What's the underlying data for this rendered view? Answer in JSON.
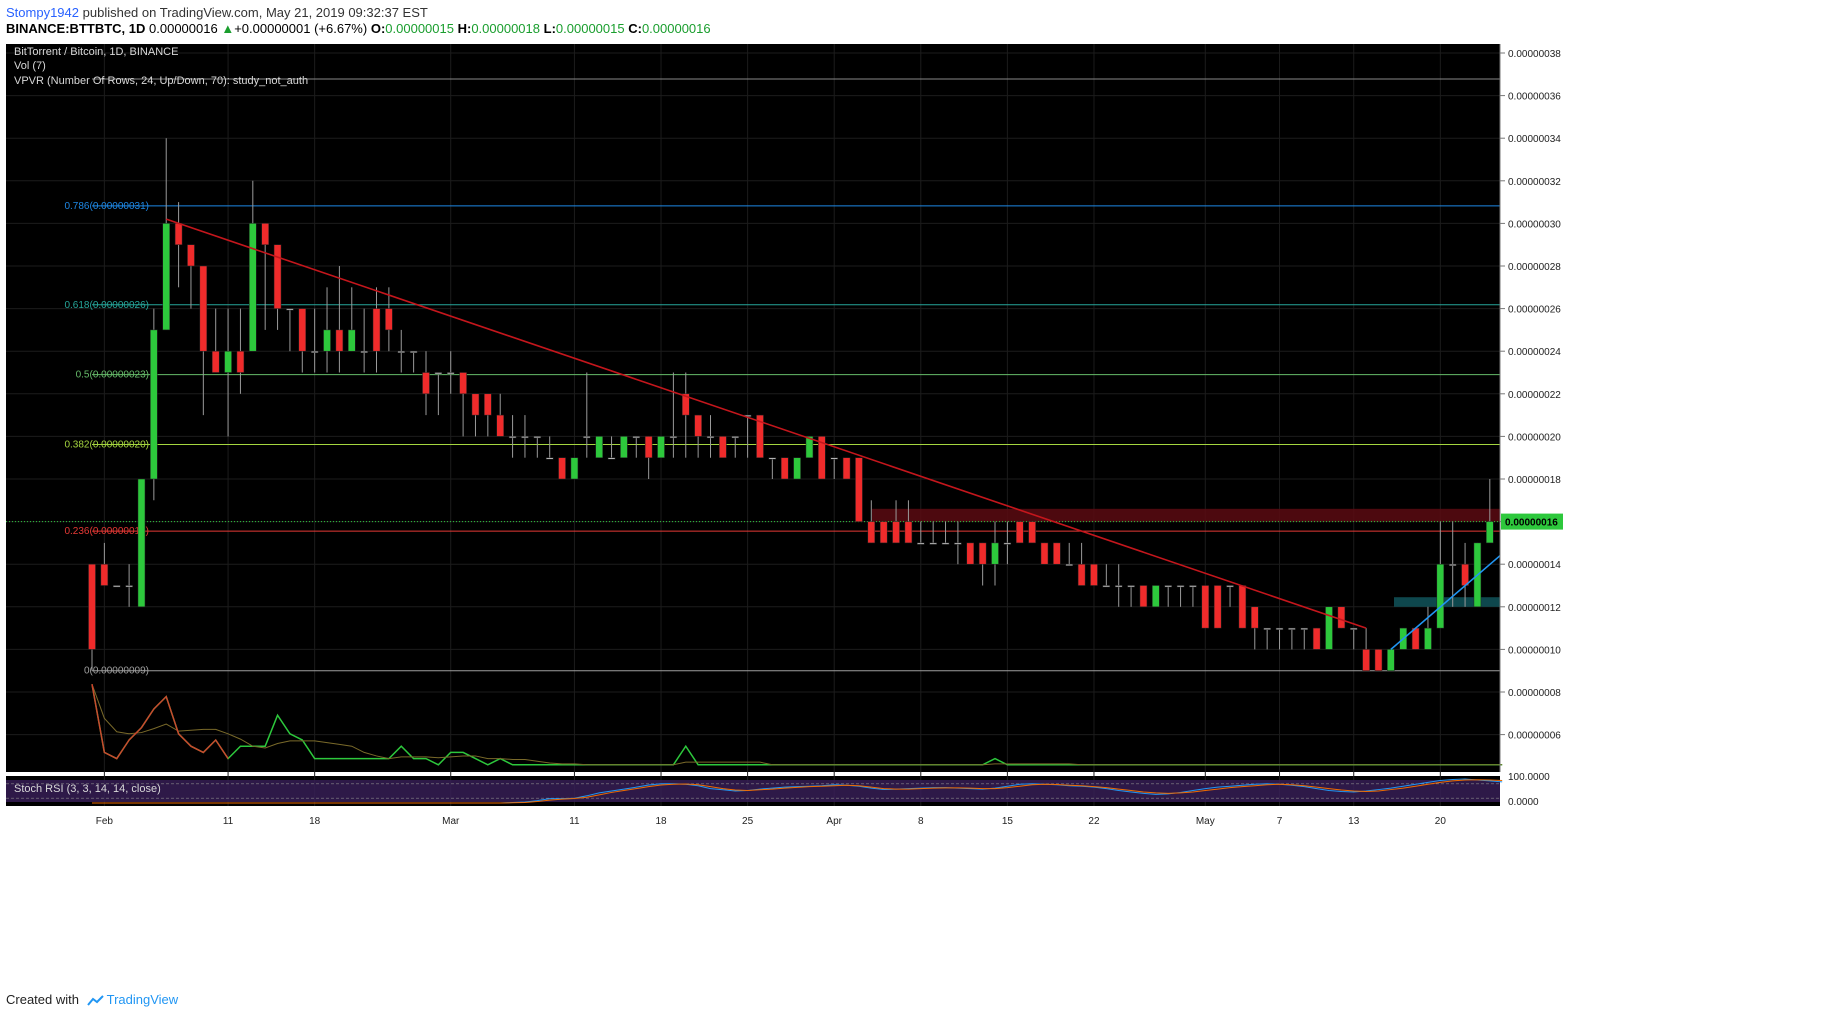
{
  "header": {
    "user": "Stompy1942",
    "published_text": "published on TradingView.com, May 21, 2019 09:32:37 EST",
    "symbol": "BINANCE:BTTBTC, 1D",
    "last": "0.00000016",
    "change": "+0.00000001 (+6.67%)",
    "o_label": "O:",
    "o_value": "0.00000015",
    "h_label": "H:",
    "h_value": "0.00000018",
    "l_label": "L:",
    "l_value": "0.00000015",
    "c_label": "C:",
    "c_value": "0.00000016"
  },
  "legend": {
    "title": "BitTorrent / Bitcoin, 1D, BINANCE",
    "volume": "Vol (7)",
    "vpvr": "VPVR (Number Of Rows, 24, Up/Down, 70): study_not_auth",
    "stoch": "Stoch RSI (3, 3, 14, 14, close)"
  },
  "footer": {
    "created": "Created with",
    "brand": "TradingView"
  },
  "colors": {
    "background": "#000000",
    "up": "#2dc83c",
    "down": "#ef2b2b",
    "trendline": "#c4161c",
    "uptrend": "#2196f3",
    "fib_786": "#1e88e5",
    "fib_618": "#26a69a",
    "fib_5": "#66bb6a",
    "fib_382": "#a5d63f",
    "fib_236": "#e53935",
    "fib_0": "#9e9e9e"
  },
  "chart_data": {
    "type": "candlestick",
    "title": "BitTorrent / Bitcoin, 1D, BINANCE",
    "y_axis_labels": [
      "0.00000038",
      "0.00000036",
      "0.00000034",
      "0.00000032",
      "0.00000030",
      "0.00000028",
      "0.00000026",
      "0.00000024",
      "0.00000022",
      "0.00000020",
      "0.00000018",
      "0.00000016",
      "0.00000014",
      "0.00000012",
      "0.00000010",
      "0.00000008",
      "0.00000006"
    ],
    "ylim": [
      6e-08,
      3.8e-07
    ],
    "last_price_label": "0.00000016",
    "stoch_axis_labels": [
      "100.0000",
      "0.0000"
    ],
    "x_tick_labels": [
      "Feb",
      "11",
      "18",
      "Mar",
      "11",
      "18",
      "25",
      "Apr",
      "8",
      "15",
      "22",
      "May",
      "7",
      "13",
      "20"
    ],
    "fib_levels": [
      {
        "label": "0.786(0.00000031)",
        "value": 3.082e-07
      },
      {
        "label": "0.618(0.00000026)",
        "value": 2.618e-07
      },
      {
        "label": "0.5(0.00000023)",
        "value": 2.29e-07
      },
      {
        "label": "0.382(0.00000020)",
        "value": 1.962e-07
      },
      {
        "label": "0.236(0.00000016)",
        "value": 1.555e-07
      },
      {
        "label": "0(0.00000009)",
        "value": 9e-08
      }
    ],
    "first_date": "2019-01-31",
    "candles": [
      [
        14,
        14,
        9,
        10
      ],
      [
        14,
        15,
        13,
        13
      ],
      [
        13,
        13,
        13,
        13
      ],
      [
        13,
        14,
        12,
        13
      ],
      [
        12,
        18,
        12,
        18
      ],
      [
        18,
        26,
        17,
        25
      ],
      [
        25,
        34,
        25,
        30
      ],
      [
        30,
        31,
        27,
        29
      ],
      [
        29,
        29,
        26,
        28
      ],
      [
        28,
        28,
        21,
        24
      ],
      [
        24,
        26,
        23,
        23
      ],
      [
        23,
        26,
        20,
        24
      ],
      [
        24,
        26,
        22,
        23
      ],
      [
        24,
        32,
        24,
        30
      ],
      [
        30,
        30,
        25,
        29
      ],
      [
        29,
        29,
        25,
        26
      ],
      [
        26,
        26,
        24,
        26
      ],
      [
        26,
        26,
        23,
        24
      ],
      [
        24,
        26,
        23,
        24
      ],
      [
        24,
        27,
        23,
        25
      ],
      [
        25,
        28,
        23,
        24
      ],
      [
        24,
        27,
        24,
        25
      ],
      [
        24,
        26,
        23,
        24
      ],
      [
        26,
        27,
        23,
        24
      ],
      [
        26,
        27,
        24,
        25
      ],
      [
        24,
        25,
        23,
        24
      ],
      [
        24,
        24,
        23,
        24
      ],
      [
        23,
        24,
        21,
        22
      ],
      [
        23,
        23,
        21,
        23
      ],
      [
        23,
        24,
        22,
        23
      ],
      [
        23,
        23,
        20,
        22
      ],
      [
        22,
        22,
        20,
        21
      ],
      [
        22,
        22,
        20,
        21
      ],
      [
        21,
        22,
        20,
        20
      ],
      [
        20,
        21,
        19,
        20
      ],
      [
        20,
        21,
        19,
        20
      ],
      [
        20,
        20,
        19,
        20
      ],
      [
        19,
        20,
        19,
        19
      ],
      [
        19,
        19,
        18,
        18
      ],
      [
        18,
        19,
        18,
        19
      ],
      [
        20,
        23,
        19,
        20
      ],
      [
        19,
        20,
        19,
        20
      ],
      [
        19,
        20,
        19,
        19
      ],
      [
        19,
        20,
        19,
        20
      ],
      [
        20,
        20,
        19,
        20
      ],
      [
        20,
        20,
        18,
        19
      ],
      [
        19,
        20,
        19,
        20
      ],
      [
        20,
        23,
        19,
        20
      ],
      [
        22,
        23,
        19,
        21
      ],
      [
        21,
        21,
        19,
        20
      ],
      [
        20,
        21,
        19,
        20
      ],
      [
        20,
        20,
        19,
        19
      ],
      [
        20,
        20,
        19,
        20
      ],
      [
        21,
        21,
        19,
        21
      ],
      [
        21,
        21,
        19,
        19
      ],
      [
        19,
        19,
        18,
        19
      ],
      [
        19,
        19,
        18,
        18
      ],
      [
        18,
        19,
        18,
        19
      ],
      [
        19,
        20,
        19,
        20
      ],
      [
        20,
        20,
        18,
        18
      ],
      [
        19,
        19,
        18,
        19
      ],
      [
        19,
        19,
        18,
        18
      ],
      [
        19,
        19,
        16,
        16
      ],
      [
        16,
        17,
        15,
        15
      ],
      [
        16,
        16,
        15,
        15
      ],
      [
        16,
        17,
        15,
        15
      ],
      [
        16,
        17,
        15,
        15
      ],
      [
        15,
        16,
        15,
        15
      ],
      [
        15,
        16,
        15,
        15
      ],
      [
        15,
        16,
        15,
        15
      ],
      [
        15,
        16,
        14,
        15
      ],
      [
        15,
        15,
        14,
        14
      ],
      [
        15,
        15,
        13,
        14
      ],
      [
        14,
        16,
        13,
        15
      ],
      [
        15,
        16,
        14,
        15
      ],
      [
        16,
        16,
        15,
        15
      ],
      [
        16,
        16,
        15,
        15
      ],
      [
        15,
        15,
        14,
        14
      ],
      [
        15,
        15,
        14,
        14
      ],
      [
        14,
        15,
        14,
        14
      ],
      [
        14,
        15,
        13,
        13
      ],
      [
        14,
        14,
        13,
        13
      ],
      [
        13,
        14,
        13,
        13
      ],
      [
        13,
        14,
        12,
        13
      ],
      [
        13,
        13,
        12,
        13
      ],
      [
        13,
        13,
        12,
        12
      ],
      [
        12,
        13,
        12,
        13
      ],
      [
        13,
        13,
        12,
        13
      ],
      [
        13,
        13,
        12,
        13
      ],
      [
        13,
        13,
        12,
        13
      ],
      [
        13,
        13,
        11,
        11
      ],
      [
        13,
        13,
        11,
        11
      ],
      [
        13,
        13,
        12,
        13
      ],
      [
        13,
        13,
        11,
        11
      ],
      [
        12,
        12,
        10,
        11
      ],
      [
        11,
        11,
        10,
        11
      ],
      [
        11,
        11,
        10,
        11
      ],
      [
        11,
        11,
        10,
        11
      ],
      [
        11,
        11,
        10,
        11
      ],
      [
        11,
        11,
        10,
        10
      ],
      [
        10,
        12,
        10,
        12
      ],
      [
        12,
        12,
        11,
        11
      ],
      [
        11,
        11,
        10,
        11
      ],
      [
        10,
        11,
        9,
        9
      ],
      [
        10,
        10,
        9,
        9
      ],
      [
        9,
        10,
        9,
        10
      ],
      [
        10,
        11,
        10,
        11
      ],
      [
        11,
        11,
        10,
        10
      ],
      [
        10,
        12,
        10,
        11
      ],
      [
        11,
        16,
        11,
        14
      ],
      [
        14,
        16,
        12,
        14
      ],
      [
        14,
        15,
        12,
        13
      ],
      [
        12,
        15,
        12,
        15
      ],
      [
        15,
        18,
        15,
        16
      ]
    ],
    "volume": [
      14,
      3,
      2,
      5,
      7,
      10,
      12,
      6,
      4,
      3,
      5,
      2,
      4,
      4,
      4,
      9,
      6,
      5,
      2,
      2,
      2,
      2,
      2,
      2,
      2,
      4,
      2,
      2,
      1,
      3,
      3,
      2,
      1,
      2,
      1,
      1,
      1,
      1,
      1,
      1,
      1,
      1,
      1,
      1,
      1,
      1,
      1,
      1,
      4,
      1,
      1,
      1,
      1,
      1,
      1,
      1,
      1,
      1,
      1,
      1,
      1,
      1,
      1,
      1,
      1,
      1,
      1,
      1,
      1,
      1,
      1,
      1,
      1,
      2,
      1,
      1,
      1,
      1,
      1,
      1,
      1,
      1,
      1,
      1,
      1,
      1,
      1,
      1,
      1,
      1,
      1,
      1,
      1,
      1,
      1,
      1,
      1,
      1,
      1,
      1,
      1,
      1,
      1,
      1,
      1,
      1,
      1,
      1,
      1,
      1,
      1,
      1,
      1,
      1,
      1
    ],
    "stoch_k": [
      0,
      0,
      0,
      0,
      0,
      0,
      0,
      0,
      0,
      0,
      0,
      0,
      0,
      0,
      0,
      0,
      0,
      0,
      0,
      0,
      0,
      0,
      0,
      0,
      0,
      0,
      0,
      0,
      0,
      0,
      0,
      0,
      0,
      0,
      2,
      4,
      10,
      18,
      18,
      20,
      30,
      42,
      50,
      58,
      66,
      75,
      80,
      80,
      78,
      72,
      60,
      55,
      50,
      52,
      58,
      62,
      66,
      68,
      70,
      72,
      76,
      74,
      70,
      62,
      56,
      58,
      60,
      62,
      64,
      64,
      62,
      60,
      58,
      62,
      70,
      78,
      80,
      78,
      76,
      72,
      70,
      66,
      60,
      52,
      46,
      40,
      36,
      38,
      44,
      52,
      60,
      66,
      70,
      74,
      78,
      80,
      78,
      74,
      68,
      60,
      52,
      48,
      46,
      50,
      56,
      62,
      70,
      78,
      86,
      94,
      98,
      100,
      96,
      92,
      88
    ],
    "stoch_d": [
      0,
      0,
      0,
      0,
      0,
      0,
      0,
      0,
      0,
      0,
      0,
      0,
      0,
      0,
      0,
      0,
      0,
      0,
      0,
      0,
      0,
      0,
      0,
      0,
      0,
      0,
      0,
      0,
      0,
      0,
      0,
      0,
      0,
      0,
      1,
      2,
      6,
      12,
      16,
      19,
      24,
      34,
      44,
      52,
      60,
      68,
      75,
      78,
      79,
      76,
      68,
      60,
      54,
      52,
      55,
      58,
      62,
      65,
      68,
      70,
      72,
      74,
      72,
      66,
      60,
      58,
      58,
      60,
      62,
      63,
      63,
      62,
      60,
      60,
      64,
      70,
      76,
      78,
      77,
      74,
      72,
      68,
      64,
      58,
      52,
      46,
      42,
      40,
      42,
      46,
      52,
      58,
      64,
      68,
      72,
      76,
      78,
      76,
      72,
      66,
      60,
      54,
      50,
      48,
      50,
      56,
      62,
      70,
      78,
      86,
      92,
      96,
      97,
      96,
      94
    ]
  }
}
